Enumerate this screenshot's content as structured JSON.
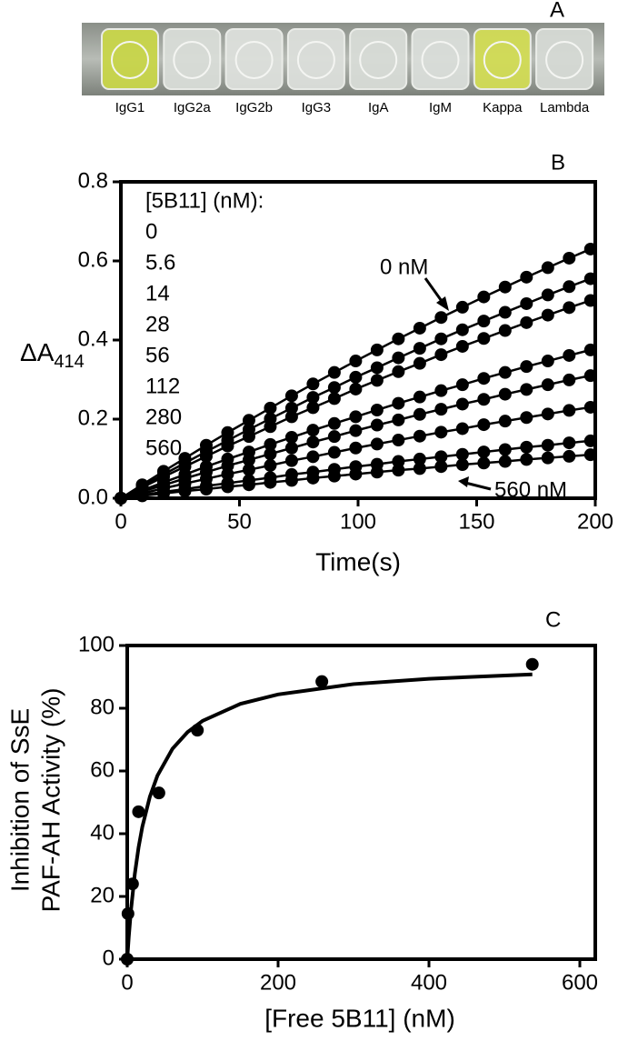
{
  "panel_a": {
    "letter": "A",
    "labels": [
      "IgG1",
      "IgG2a",
      "IgG2b",
      "IgG3",
      "IgA",
      "IgM",
      "Kappa",
      "Lambda"
    ],
    "well_colors": [
      "#c9d64a",
      "#d9ddd8",
      "#dde0dc",
      "#dcdfdb",
      "#d8dcd7",
      "#dadedA",
      "#d2dc55",
      "#d6dad5"
    ]
  },
  "chart_data": [
    {
      "type": "line",
      "letter": "B",
      "x_label": "Time(s)",
      "y_label": "ΔA",
      "y_label_sub": "414",
      "legend_title": "[5B11] (nM):",
      "color": "#000000",
      "xlim": [
        0,
        200
      ],
      "xticks": [
        0,
        50,
        100,
        150,
        200
      ],
      "ylim": [
        0,
        0.8
      ],
      "yticks": [
        {
          "value": 0,
          "label": "0.0"
        },
        0.2,
        0.4,
        0.6,
        0.8
      ],
      "annotations": [
        "0 nM",
        "560 nM"
      ],
      "x": [
        0,
        9,
        18,
        27,
        36,
        45,
        54,
        63,
        72,
        81,
        90,
        99,
        108,
        117,
        126,
        135,
        144,
        153,
        162,
        171,
        180,
        189,
        198
      ],
      "series": [
        {
          "name": "0",
          "values": [
            0,
            0.034,
            0.068,
            0.101,
            0.134,
            0.166,
            0.197,
            0.228,
            0.259,
            0.289,
            0.318,
            0.347,
            0.375,
            0.403,
            0.43,
            0.457,
            0.483,
            0.509,
            0.534,
            0.559,
            0.583,
            0.607,
            0.63
          ]
        },
        {
          "name": "5.6",
          "values": [
            0,
            0.03,
            0.06,
            0.089,
            0.118,
            0.146,
            0.174,
            0.201,
            0.228,
            0.255,
            0.28,
            0.306,
            0.33,
            0.355,
            0.379,
            0.403,
            0.426,
            0.448,
            0.47,
            0.492,
            0.514,
            0.535,
            0.555
          ]
        },
        {
          "name": "14",
          "values": [
            0,
            0.027,
            0.054,
            0.08,
            0.106,
            0.132,
            0.156,
            0.181,
            0.206,
            0.229,
            0.252,
            0.276,
            0.298,
            0.32,
            0.341,
            0.363,
            0.384,
            0.404,
            0.424,
            0.444,
            0.463,
            0.482,
            0.5
          ]
        },
        {
          "name": "28",
          "values": [
            0,
            0.02,
            0.04,
            0.06,
            0.08,
            0.099,
            0.117,
            0.136,
            0.154,
            0.172,
            0.189,
            0.206,
            0.223,
            0.24,
            0.256,
            0.272,
            0.287,
            0.303,
            0.318,
            0.333,
            0.347,
            0.361,
            0.375
          ]
        },
        {
          "name": "56",
          "values": [
            0,
            0.017,
            0.033,
            0.05,
            0.066,
            0.082,
            0.097,
            0.112,
            0.127,
            0.142,
            0.156,
            0.171,
            0.185,
            0.198,
            0.212,
            0.225,
            0.238,
            0.25,
            0.263,
            0.275,
            0.287,
            0.299,
            0.31
          ]
        },
        {
          "name": "112",
          "values": [
            0,
            0.012,
            0.025,
            0.037,
            0.049,
            0.061,
            0.072,
            0.083,
            0.095,
            0.105,
            0.116,
            0.127,
            0.137,
            0.147,
            0.157,
            0.167,
            0.176,
            0.186,
            0.195,
            0.204,
            0.213,
            0.222,
            0.23
          ]
        },
        {
          "name": "280",
          "values": [
            0,
            0.008,
            0.016,
            0.023,
            0.031,
            0.038,
            0.045,
            0.052,
            0.06,
            0.066,
            0.073,
            0.08,
            0.086,
            0.093,
            0.099,
            0.105,
            0.111,
            0.117,
            0.123,
            0.129,
            0.134,
            0.14,
            0.145
          ]
        },
        {
          "name": "560",
          "values": [
            0,
            0.006,
            0.012,
            0.018,
            0.023,
            0.029,
            0.034,
            0.04,
            0.045,
            0.051,
            0.056,
            0.061,
            0.066,
            0.071,
            0.075,
            0.08,
            0.085,
            0.089,
            0.093,
            0.098,
            0.102,
            0.106,
            0.11
          ]
        }
      ]
    },
    {
      "type": "scatter",
      "letter": "C",
      "x_label": "[Free 5B11]  (nM)",
      "y_label": [
        "Inhibition of SsE",
        "PAF-AH Activity (%)"
      ],
      "color": "#000000",
      "xlim": [
        0,
        600
      ],
      "xticks": [
        0,
        200,
        400,
        600
      ],
      "ylim": [
        0,
        100
      ],
      "yticks": [
        0,
        20,
        40,
        60,
        80,
        100
      ],
      "points": {
        "x": [
          0,
          1,
          7,
          15,
          42,
          93,
          258,
          537
        ],
        "values": [
          0,
          14.5,
          24,
          47,
          53,
          73,
          88.5,
          94
        ]
      },
      "fit": {
        "x": [
          0,
          2,
          5,
          10,
          15,
          20,
          30,
          40,
          60,
          80,
          100,
          150,
          200,
          300,
          400,
          537
        ],
        "values": [
          0,
          7.0,
          15.8,
          27.1,
          35.6,
          42.2,
          51.8,
          58.5,
          67.1,
          72.4,
          76.0,
          81.4,
          84.4,
          87.7,
          89.4,
          90.8
        ]
      }
    }
  ]
}
